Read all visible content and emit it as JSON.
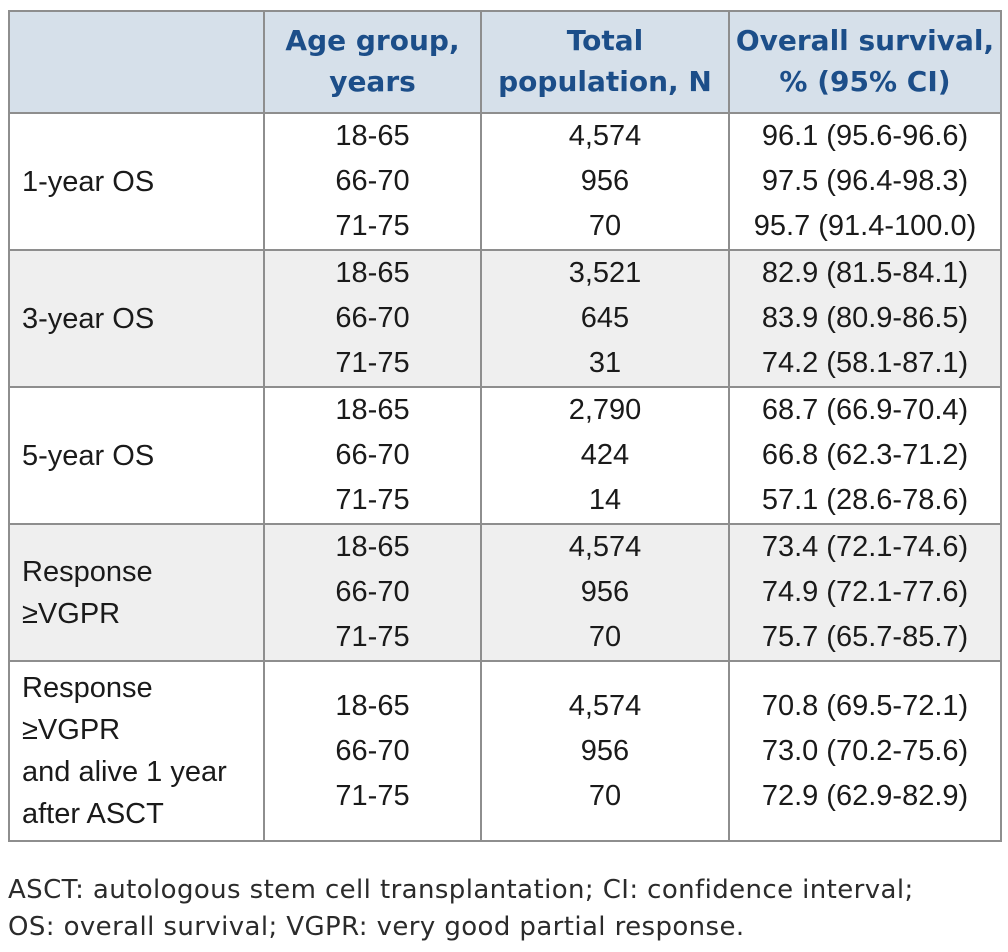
{
  "colors": {
    "header_bg": "#d6e0ea",
    "header_text": "#1c4e89",
    "row_stripe": "#efefef",
    "border": "#8e8e8e",
    "body_text": "#1a1a1a"
  },
  "table": {
    "headers": {
      "row_label": "",
      "age": "Age group,\nyears",
      "population": "Total\npopulation, N",
      "survival": "Overall survival,\n% (95% CI)"
    },
    "rows": [
      {
        "label": "1-year OS",
        "age_groups": [
          "18-65",
          "66-70",
          "71-75"
        ],
        "populations": [
          "4,574",
          "956",
          "70"
        ],
        "survival": [
          "96.1 (95.6-96.6)",
          "97.5 (96.4-98.3)",
          "95.7 (91.4-100.0)"
        ]
      },
      {
        "label": "3-year OS",
        "age_groups": [
          "18-65",
          "66-70",
          "71-75"
        ],
        "populations": [
          "3,521",
          "645",
          "31"
        ],
        "survival": [
          "82.9 (81.5-84.1)",
          "83.9 (80.9-86.5)",
          "74.2 (58.1-87.1)"
        ]
      },
      {
        "label": "5-year OS",
        "age_groups": [
          "18-65",
          "66-70",
          "71-75"
        ],
        "populations": [
          "2,790",
          "424",
          "14"
        ],
        "survival": [
          "68.7 (66.9-70.4)",
          "66.8 (62.3-71.2)",
          "57.1 (28.6-78.6)"
        ]
      },
      {
        "label": "Response\n≥VGPR",
        "age_groups": [
          "18-65",
          "66-70",
          "71-75"
        ],
        "populations": [
          "4,574",
          "956",
          "70"
        ],
        "survival": [
          "73.4 (72.1-74.6)",
          "74.9 (72.1-77.6)",
          "75.7 (65.7-85.7)"
        ]
      },
      {
        "label": "Response\n≥VGPR\nand alive 1 year\nafter ASCT",
        "age_groups": [
          "18-65",
          "66-70",
          "71-75"
        ],
        "populations": [
          "4,574",
          "956",
          "70"
        ],
        "survival": [
          "70.8 (69.5-72.1)",
          "73.0 (70.2-75.6)",
          "72.9 (62.9-82.9)"
        ]
      }
    ]
  },
  "footnote": "ASCT: autologous stem cell transplantation; CI: confidence interval;\nOS: overall survival; VGPR: very good partial response."
}
